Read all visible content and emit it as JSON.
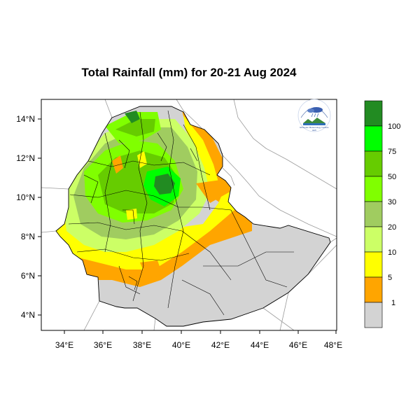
{
  "title": "Total Rainfall (mm) for 20-21 Aug 2024",
  "logo": {
    "arc_text": "ኢትዮጵያ ሚቲዎሮሎጂ ኢንስቲትዩት",
    "caption": "Ethiopian Meteorology Institute",
    "sub": "EMI"
  },
  "axes": {
    "x_ticks": [
      "34°E",
      "36°E",
      "38°E",
      "40°E",
      "42°E",
      "44°E",
      "46°E",
      "48°E"
    ],
    "y_ticks": [
      "14°N",
      "12°N",
      "10°N",
      "8°N",
      "6°N",
      "4°N"
    ]
  },
  "legend": {
    "labels": [
      "1",
      "5",
      "10",
      "20",
      "30",
      "50",
      "75",
      "100"
    ],
    "colors": [
      "#d3d3d3",
      "#ffa500",
      "#ffff00",
      "#ccff66",
      "#a0cc60",
      "#80ff00",
      "#66cc00",
      "#00ff00",
      "#228b22"
    ]
  },
  "chart_data": {
    "type": "map",
    "variable": "Total Rainfall (mm)",
    "period": "20-21 Aug 2024",
    "xlim_lon": [
      32.9,
      48.2
    ],
    "ylim_lat": [
      3.2,
      15.1
    ],
    "classes": [
      {
        "range": "<1",
        "color": "#d3d3d3"
      },
      {
        "range": "1-5",
        "color": "#ffa500"
      },
      {
        "range": "5-10",
        "color": "#ffff00"
      },
      {
        "range": "10-20",
        "color": "#ccff66"
      },
      {
        "range": "20-30",
        "color": "#a0cc60"
      },
      {
        "range": "30-50",
        "color": "#80ff00"
      },
      {
        "range": "50-75",
        "color": "#66cc00"
      },
      {
        "range": "75-100",
        "color": "#00ff00"
      },
      {
        "range": ">100",
        "color": "#228b22"
      }
    ]
  }
}
